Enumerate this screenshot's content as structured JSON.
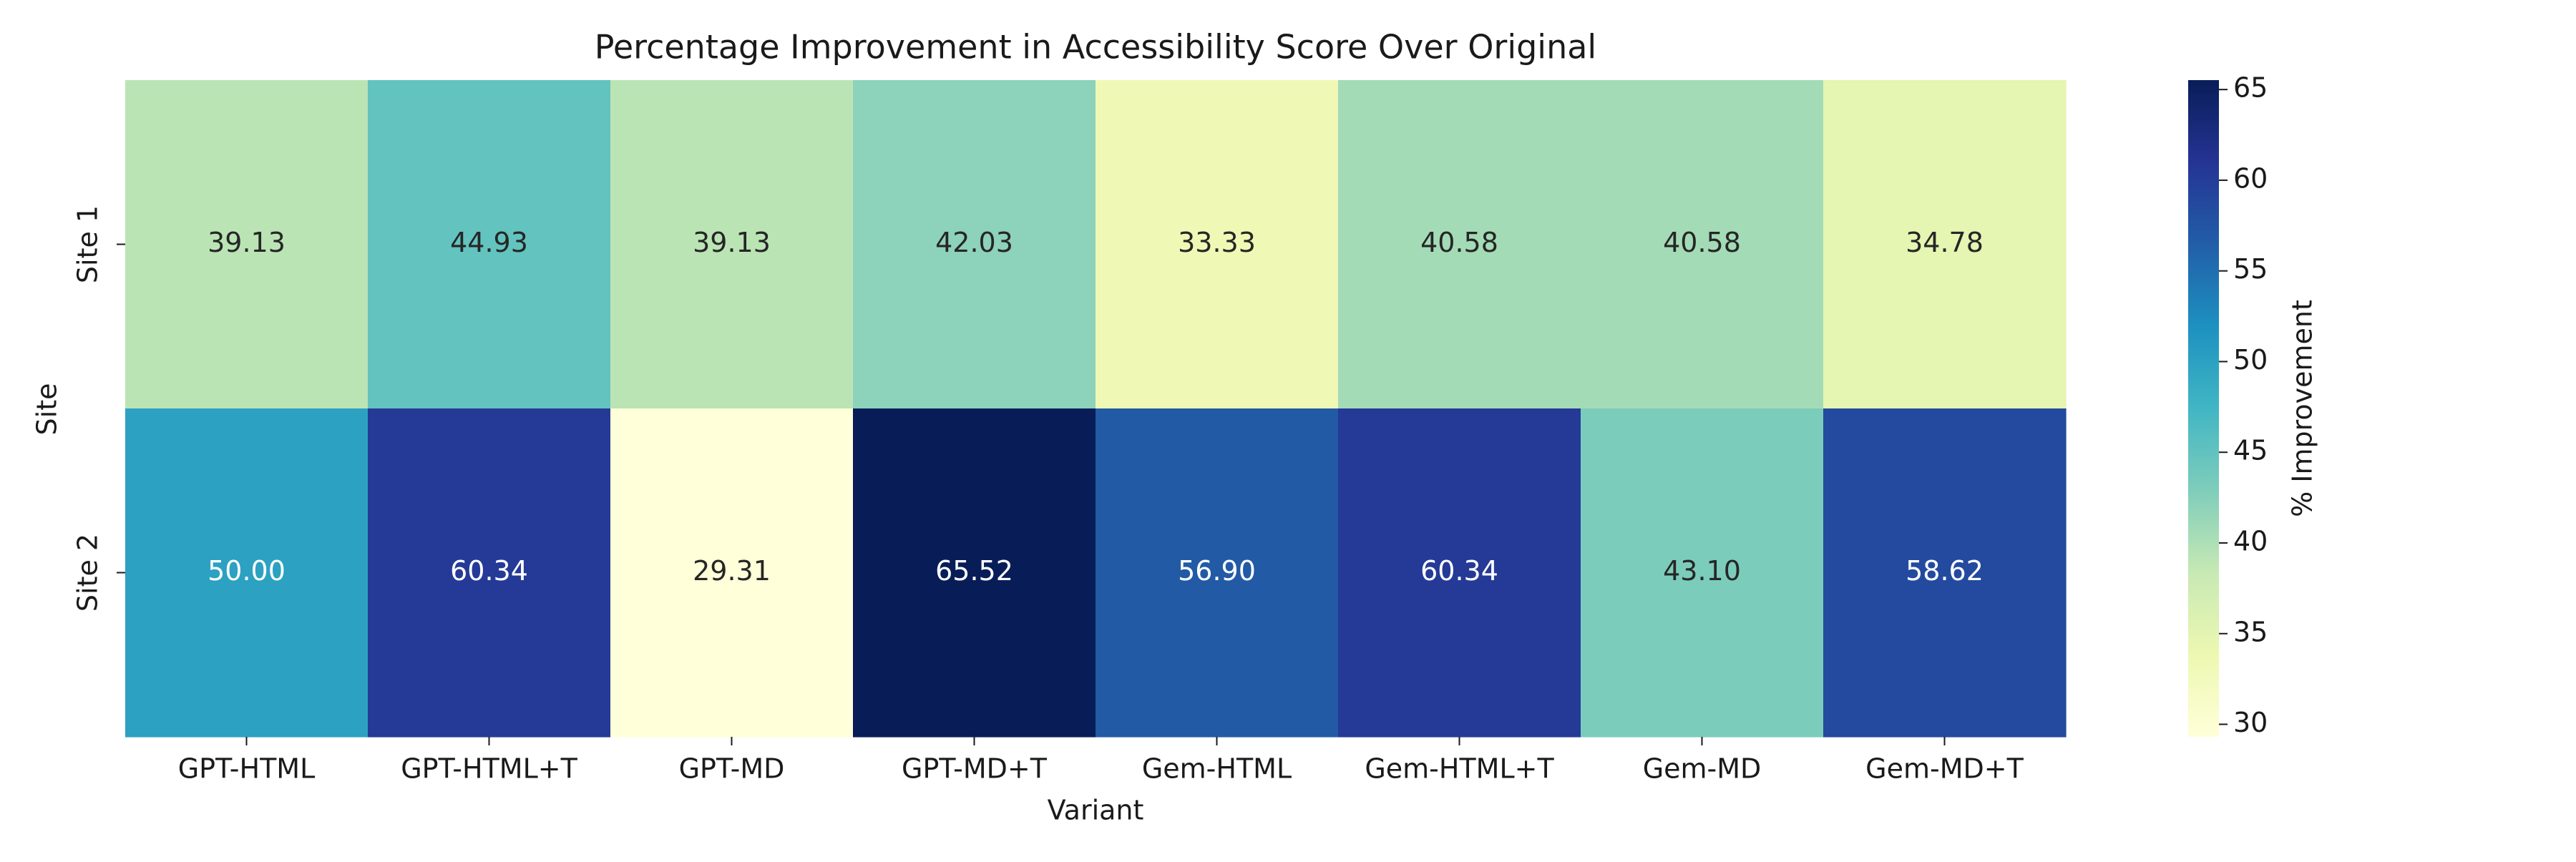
{
  "chart_data": {
    "type": "heatmap",
    "title": "Percentage Improvement in Accessibility Score Over Original",
    "xlabel": "Variant",
    "ylabel": "Site",
    "x_categories": [
      "GPT-HTML",
      "GPT-HTML+T",
      "GPT-MD",
      "GPT-MD+T",
      "Gem-HTML",
      "Gem-HTML+T",
      "Gem-MD",
      "Gem-MD+T"
    ],
    "y_categories": [
      "Site 1",
      "Site 2"
    ],
    "values": [
      [
        39.13,
        44.93,
        39.13,
        42.03,
        33.33,
        40.58,
        40.58,
        34.78
      ],
      [
        50.0,
        60.34,
        29.31,
        65.52,
        56.9,
        60.34,
        43.1,
        58.62
      ]
    ],
    "value_labels": [
      [
        "39.13",
        "44.93",
        "39.13",
        "42.03",
        "33.33",
        "40.58",
        "40.58",
        "34.78"
      ],
      [
        "50.00",
        "60.34",
        "29.31",
        "65.52",
        "56.90",
        "60.34",
        "43.10",
        "58.62"
      ]
    ],
    "colorbar": {
      "label": "% Improvement",
      "vmin": 29.31,
      "vmax": 65.52,
      "ticks": [
        30,
        35,
        40,
        45,
        50,
        55,
        60,
        65
      ],
      "colormap": "YlGnBu",
      "colormap_stops": [
        "#ffffd9",
        "#edf8b1",
        "#c7e9b4",
        "#7fcdbb",
        "#41b6c4",
        "#1d91c0",
        "#225ea8",
        "#253494",
        "#081d58"
      ]
    },
    "annotation_colors": {
      "dark": "#262626",
      "light": "#ffffff"
    }
  }
}
